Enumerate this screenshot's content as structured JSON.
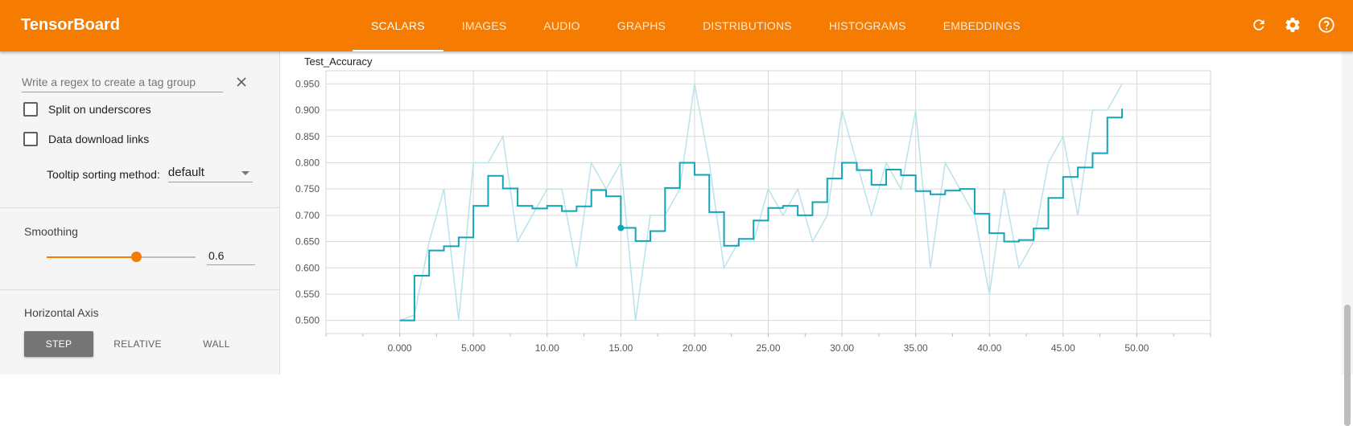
{
  "app": {
    "title": "TensorBoard"
  },
  "tabs": [
    {
      "label": "SCALARS",
      "active": true
    },
    {
      "label": "IMAGES",
      "active": false
    },
    {
      "label": "AUDIO",
      "active": false
    },
    {
      "label": "GRAPHS",
      "active": false
    },
    {
      "label": "DISTRIBUTIONS",
      "active": false
    },
    {
      "label": "HISTOGRAMS",
      "active": false
    },
    {
      "label": "EMBEDDINGS",
      "active": false
    }
  ],
  "top_icons": [
    "refresh-icon",
    "settings-icon",
    "help-icon"
  ],
  "sidebar": {
    "regex_placeholder": "Write a regex to create a tag group",
    "split_label": "Split on underscores",
    "split_checked": false,
    "download_label": "Data download links",
    "download_checked": false,
    "tooltip_label": "Tooltip sorting method:",
    "tooltip_value": "default",
    "smoothing_title": "Smoothing",
    "smoothing_value": "0.6",
    "smoothing_fraction": 0.6,
    "axis_title": "Horizontal Axis",
    "axis_options": [
      {
        "label": "STEP",
        "active": true
      },
      {
        "label": "RELATIVE",
        "active": false
      },
      {
        "label": "WALL",
        "active": false
      }
    ]
  },
  "colors": {
    "accent": "#f57c00",
    "series": "#12a5b8",
    "series_raw": "#b9e3ea"
  },
  "chart_data": {
    "type": "line",
    "title": "Test_Accuracy",
    "xlabel": "",
    "ylabel": "",
    "xlim": [
      -5,
      55
    ],
    "ylim": [
      0.475,
      0.975
    ],
    "x_ticks": [
      "0.000",
      "5.000",
      "10.00",
      "15.00",
      "20.00",
      "25.00",
      "30.00",
      "35.00",
      "40.00",
      "45.00",
      "50.00"
    ],
    "x_tick_values": [
      0,
      5,
      10,
      15,
      20,
      25,
      30,
      35,
      40,
      45,
      50
    ],
    "y_ticks": [
      "0.500",
      "0.550",
      "0.600",
      "0.650",
      "0.700",
      "0.750",
      "0.800",
      "0.850",
      "0.900",
      "0.950"
    ],
    "y_tick_values": [
      0.5,
      0.55,
      0.6,
      0.65,
      0.7,
      0.75,
      0.8,
      0.85,
      0.9,
      0.95
    ],
    "grid": true,
    "highlight_point": {
      "x": 15,
      "y": 0.676
    },
    "series": [
      {
        "role": "raw",
        "x": [
          0,
          1,
          2,
          3,
          4,
          5,
          6,
          7,
          8,
          9,
          10,
          11,
          12,
          13,
          14,
          15,
          16,
          17,
          18,
          19,
          20,
          21,
          22,
          23,
          24,
          25,
          26,
          27,
          28,
          29,
          30,
          31,
          32,
          33,
          34,
          35,
          36,
          37,
          38,
          39,
          40,
          41,
          42,
          43,
          44,
          45,
          46,
          47,
          48,
          49
        ],
        "values": [
          0.5,
          0.51,
          0.65,
          0.75,
          0.5,
          0.8,
          0.8,
          0.85,
          0.65,
          0.7,
          0.75,
          0.75,
          0.6,
          0.8,
          0.75,
          0.8,
          0.5,
          0.7,
          0.7,
          0.75,
          0.95,
          0.8,
          0.6,
          0.65,
          0.65,
          0.75,
          0.7,
          0.75,
          0.65,
          0.7,
          0.9,
          0.8,
          0.7,
          0.8,
          0.75,
          0.9,
          0.6,
          0.8,
          0.75,
          0.7,
          0.55,
          0.75,
          0.6,
          0.65,
          0.8,
          0.85,
          0.7,
          0.9,
          0.9,
          0.95
        ]
      },
      {
        "role": "smoothed",
        "x": [
          0,
          1,
          2,
          3,
          4,
          5,
          6,
          7,
          8,
          9,
          10,
          11,
          12,
          13,
          14,
          15,
          16,
          17,
          18,
          19,
          20,
          21,
          22,
          23,
          24,
          25,
          26,
          27,
          28,
          29,
          30,
          31,
          32,
          33,
          34,
          35,
          36,
          37,
          38,
          39,
          40,
          41,
          42,
          43,
          44,
          45,
          46,
          47,
          48,
          49
        ],
        "values": [
          0.5,
          0.585,
          0.633,
          0.641,
          0.658,
          0.718,
          0.775,
          0.751,
          0.718,
          0.713,
          0.718,
          0.708,
          0.717,
          0.748,
          0.736,
          0.676,
          0.651,
          0.67,
          0.752,
          0.8,
          0.777,
          0.706,
          0.642,
          0.655,
          0.69,
          0.714,
          0.718,
          0.7,
          0.725,
          0.77,
          0.8,
          0.786,
          0.758,
          0.787,
          0.776,
          0.746,
          0.74,
          0.747,
          0.75,
          0.703,
          0.666,
          0.65,
          0.653,
          0.675,
          0.733,
          0.773,
          0.791,
          0.818,
          0.886,
          0.903
        ]
      }
    ]
  }
}
